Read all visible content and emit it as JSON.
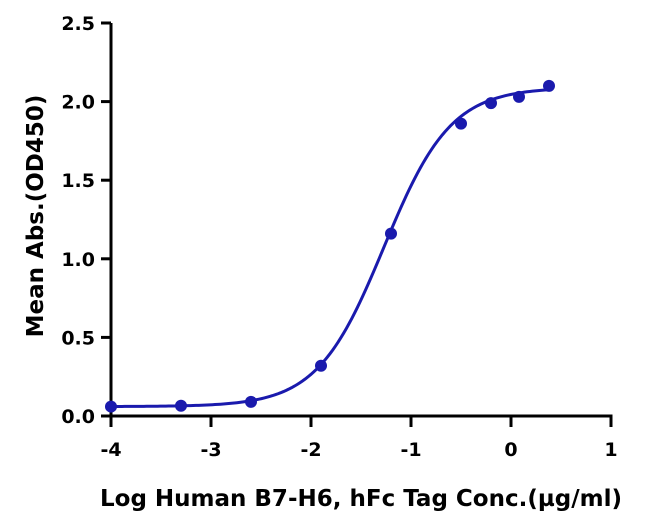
{
  "chart_data": {
    "type": "scatter",
    "title": "",
    "xlabel": "Log Human B7-H6, hFc Tag Conc.(µg/ml)",
    "ylabel": "Mean Abs.(OD450)",
    "xlim": [
      -4,
      1
    ],
    "ylim": [
      0,
      2.5
    ],
    "x_ticks": [
      -4,
      -3,
      -2,
      -1,
      0,
      1
    ],
    "x_tick_labels": [
      "-4",
      "-3",
      "-2",
      "-1",
      "0",
      "1"
    ],
    "y_ticks": [
      0.0,
      0.5,
      1.0,
      1.5,
      2.0,
      2.5
    ],
    "y_tick_labels": [
      "0.0",
      "0.5",
      "1.0",
      "1.5",
      "2.0",
      "2.5"
    ],
    "grid": false,
    "color": "#1a1aad",
    "series": [
      {
        "points": [
          {
            "x": -4.0,
            "y": 0.06
          },
          {
            "x": -3.3,
            "y": 0.065
          },
          {
            "x": -2.6,
            "y": 0.09
          },
          {
            "x": -1.9,
            "y": 0.32
          },
          {
            "x": -1.2,
            "y": 1.16
          },
          {
            "x": -0.5,
            "y": 1.86
          },
          {
            "x": -0.2,
            "y": 1.99
          },
          {
            "x": 0.08,
            "y": 2.03
          },
          {
            "x": 0.38,
            "y": 2.1
          }
        ],
        "fit_curve": "4PL",
        "fit_params": {
          "bottom": 0.06,
          "top": 2.09,
          "ec50_log": -1.27,
          "hill": 1.3
        }
      }
    ]
  }
}
